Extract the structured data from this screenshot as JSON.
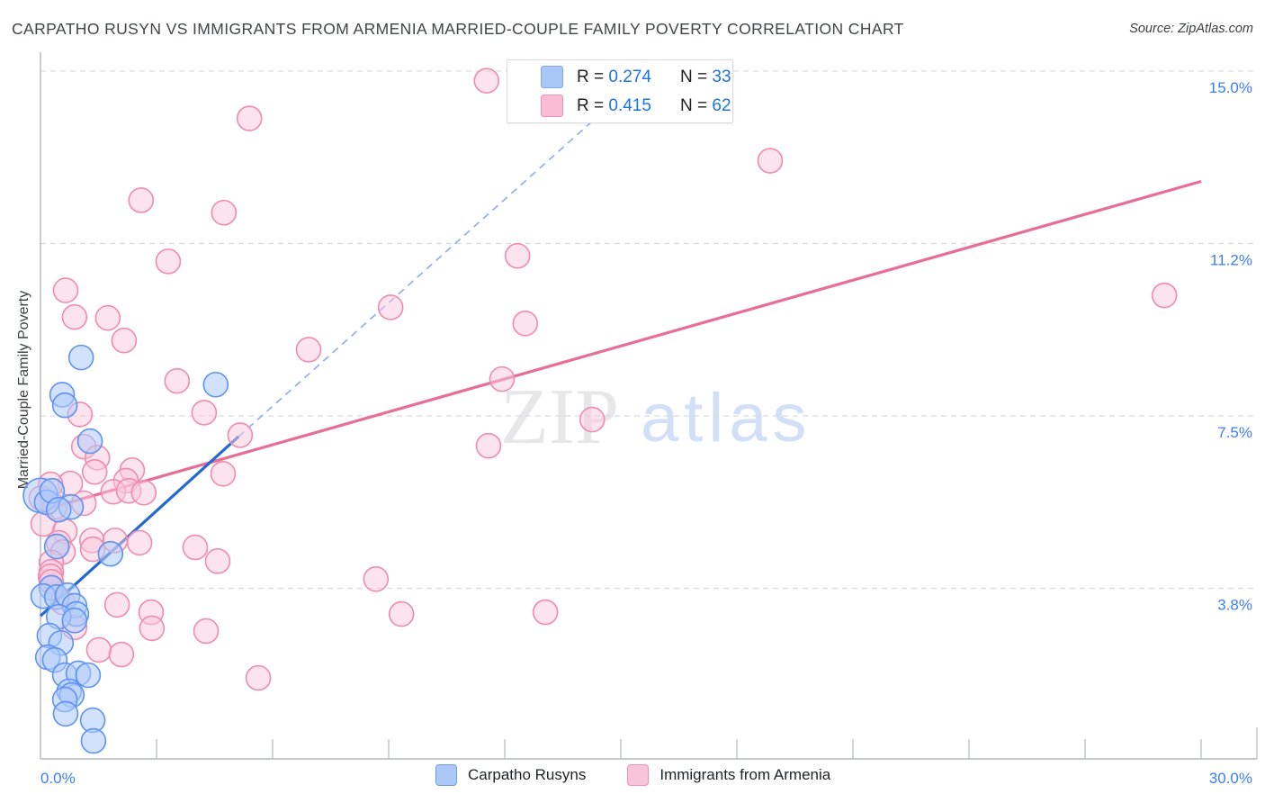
{
  "title": "CARPATHO RUSYN VS IMMIGRANTS FROM ARMENIA MARRIED-COUPLE FAMILY POVERTY CORRELATION CHART",
  "source": "Source: ZipAtlas.com",
  "watermark": {
    "zip": "ZIP",
    "atlas": "atlas"
  },
  "y_axis_title": "Married-Couple Family Poverty",
  "legend_box": {
    "rows": [
      {
        "series": "Carpatho Rusyns",
        "r_text": "R = ",
        "r_value": "0.274",
        "n_text": "N = ",
        "n_value": "33"
      },
      {
        "series": "Immigrants from Armenia",
        "r_text": "R = ",
        "r_value": "0.415",
        "n_text": "N = ",
        "n_value": "62"
      }
    ]
  },
  "bottom_legend": {
    "blue_label": "Carpatho Rusyns",
    "pink_label": "Immigrants from Armenia"
  },
  "colors": {
    "blue_fill": "rgba(174,203,250,0.55)",
    "blue_stroke": "#5e92f3",
    "blue_trend": "#2469d2",
    "blue_dashed": "#93afe4",
    "pink_fill": "rgba(249,199,219,0.5)",
    "pink_stroke": "#f08bb0",
    "pink_trend": "#e76e99",
    "grid": "#d9dbde",
    "axis": "#b4b7bb",
    "tick_label": "#3d7ef0",
    "watermark_zip": "#e7e7e9",
    "watermark_atlas": "#d2e0f7"
  },
  "chart_data": {
    "type": "scatter",
    "xlabel": "",
    "ylabel": "Married-Couple Family Poverty",
    "xlim": [
      0,
      30
    ],
    "ylim": [
      0,
      15.4
    ],
    "x_ticks": {
      "values": [
        3,
        6,
        9,
        12,
        15,
        18,
        21,
        24,
        27,
        30
      ],
      "min_label": "0.0%",
      "max_label": "30.0%"
    },
    "y_gridlines": [
      {
        "value": 15.0,
        "label": "15.0%"
      },
      {
        "value": 11.25,
        "label": "11.2%"
      },
      {
        "value": 7.5,
        "label": "7.5%"
      },
      {
        "value": 3.75,
        "label": "3.8%"
      }
    ],
    "series": [
      {
        "name": "Carpatho Rusyns",
        "r": 0.274,
        "n": 33,
        "trend": [
          {
            "x1": 0,
            "y1": 3.15,
            "x2": 5.12,
            "y2": 7.05,
            "dashed": false
          },
          {
            "x1": 5.12,
            "y1": 7.05,
            "x2": 15.68,
            "y2": 14.97,
            "dashed": true
          }
        ],
        "points": [
          [
            1.05,
            8.77
          ],
          [
            4.53,
            8.18
          ],
          [
            0.56,
            7.96
          ],
          [
            0.63,
            7.73
          ],
          [
            1.28,
            6.95
          ],
          [
            0.0,
            5.77,
            19
          ],
          [
            0.16,
            5.62
          ],
          [
            0.3,
            5.87
          ],
          [
            0.79,
            5.52
          ],
          [
            0.47,
            5.46
          ],
          [
            0.42,
            4.66
          ],
          [
            1.81,
            4.5
          ],
          [
            0.28,
            3.76
          ],
          [
            0.07,
            3.58
          ],
          [
            0.42,
            3.56
          ],
          [
            0.7,
            3.6
          ],
          [
            0.88,
            3.37
          ],
          [
            0.93,
            3.19
          ],
          [
            0.47,
            3.13
          ],
          [
            0.88,
            3.05
          ],
          [
            0.23,
            2.72
          ],
          [
            0.53,
            2.56
          ],
          [
            0.19,
            2.25
          ],
          [
            0.37,
            2.19
          ],
          [
            0.63,
            1.86
          ],
          [
            0.98,
            1.9
          ],
          [
            1.23,
            1.86
          ],
          [
            0.74,
            1.51
          ],
          [
            0.81,
            1.43
          ],
          [
            0.63,
            1.33
          ],
          [
            0.65,
            1.02
          ],
          [
            1.35,
            0.88
          ],
          [
            1.37,
            0.43
          ]
        ]
      },
      {
        "name": "Immigrants from Armenia",
        "r": 0.415,
        "n": 62,
        "trend": [
          {
            "x1": 0,
            "y1": 5.44,
            "x2": 30,
            "y2": 12.6,
            "dashed": false
          }
        ],
        "points": [
          [
            5.4,
            13.97
          ],
          [
            11.53,
            14.79
          ],
          [
            18.86,
            13.05
          ],
          [
            2.6,
            12.19
          ],
          [
            4.74,
            11.92
          ],
          [
            3.3,
            10.86
          ],
          [
            12.33,
            10.98
          ],
          [
            29.05,
            10.12
          ],
          [
            9.05,
            9.86
          ],
          [
            12.53,
            9.51
          ],
          [
            6.93,
            8.94
          ],
          [
            3.53,
            8.26
          ],
          [
            11.93,
            8.3
          ],
          [
            14.26,
            7.42
          ],
          [
            11.58,
            6.85
          ],
          [
            0.65,
            10.23
          ],
          [
            0.88,
            9.65
          ],
          [
            1.74,
            9.63
          ],
          [
            2.16,
            9.14
          ],
          [
            1.02,
            7.53
          ],
          [
            1.12,
            6.83
          ],
          [
            1.47,
            6.59
          ],
          [
            1.4,
            6.28
          ],
          [
            2.37,
            6.32
          ],
          [
            2.21,
            6.09
          ],
          [
            0.77,
            6.03
          ],
          [
            0.26,
            6.01
          ],
          [
            0.02,
            5.71
          ],
          [
            0.37,
            5.52
          ],
          [
            1.12,
            5.6
          ],
          [
            1.88,
            5.85
          ],
          [
            2.28,
            5.87
          ],
          [
            2.67,
            5.83
          ],
          [
            4.23,
            7.57
          ],
          [
            5.16,
            7.08
          ],
          [
            4.72,
            6.24
          ],
          [
            0.07,
            5.15
          ],
          [
            0.63,
            4.99
          ],
          [
            0.47,
            4.74
          ],
          [
            0.58,
            4.54
          ],
          [
            1.33,
            4.79
          ],
          [
            1.35,
            4.6
          ],
          [
            1.93,
            4.79
          ],
          [
            2.56,
            4.74
          ],
          [
            4.0,
            4.64
          ],
          [
            4.58,
            4.34
          ],
          [
            0.28,
            4.31
          ],
          [
            0.28,
            4.11
          ],
          [
            0.26,
            4.01
          ],
          [
            0.28,
            3.89
          ],
          [
            0.58,
            3.44
          ],
          [
            0.88,
            2.9
          ],
          [
            1.98,
            3.39
          ],
          [
            2.86,
            3.23
          ],
          [
            2.88,
            2.88
          ],
          [
            1.51,
            2.41
          ],
          [
            2.09,
            2.31
          ],
          [
            4.28,
            2.82
          ],
          [
            5.63,
            1.8
          ],
          [
            8.67,
            3.95
          ],
          [
            9.33,
            3.19
          ],
          [
            13.05,
            3.23
          ]
        ]
      }
    ]
  }
}
